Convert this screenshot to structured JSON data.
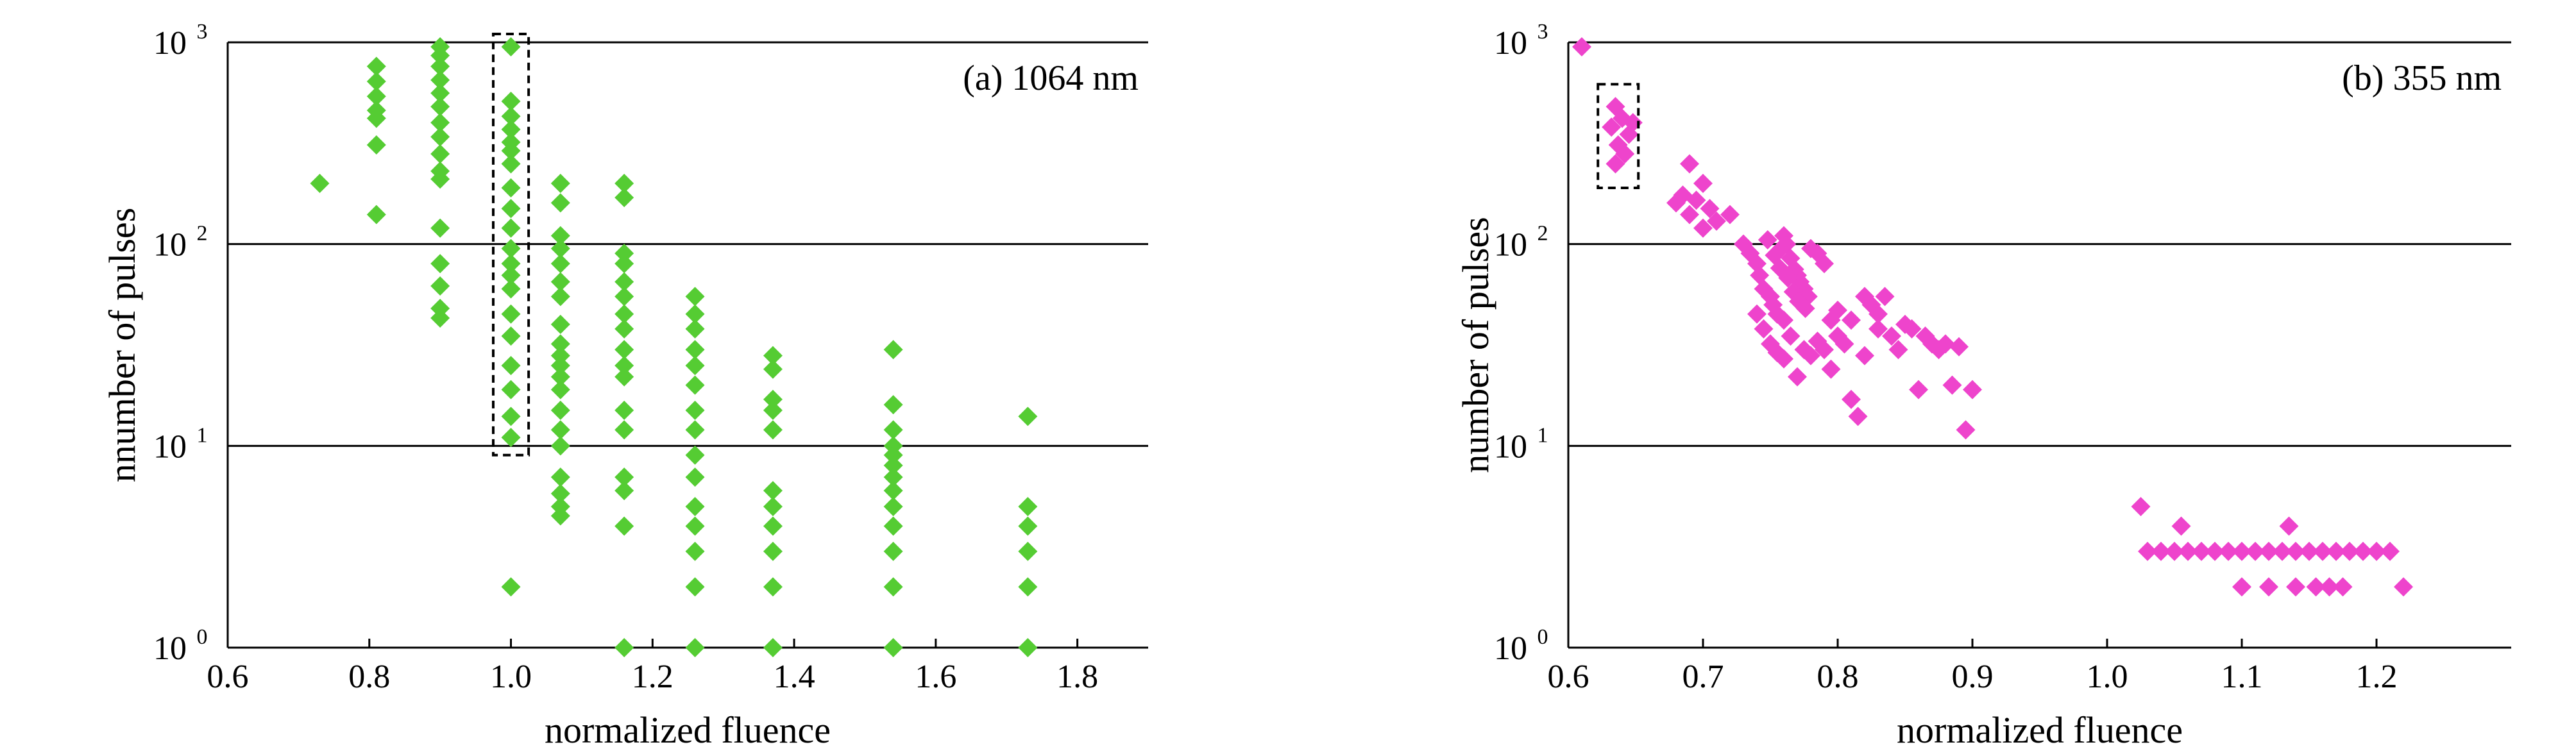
{
  "chart_data": [
    {
      "type": "scatter",
      "annotation": "(a) 1064 nm",
      "xlabel": "normalized fluence",
      "ylabel": "nnumber of pulses",
      "xlim": [
        0.6,
        1.9
      ],
      "ylim": [
        1,
        1000
      ],
      "yscale": "log",
      "xticks": [
        "0.6",
        "0.8",
        "1.0",
        "1.2",
        "1.4",
        "1.6",
        "1.8"
      ],
      "yticks": [
        {
          "base": "10",
          "exp": "0"
        },
        {
          "base": "10",
          "exp": "1"
        },
        {
          "base": "10",
          "exp": "2"
        },
        {
          "base": "10",
          "exp": "3"
        }
      ],
      "grid": "horizontal",
      "marker_color": "#55cc33",
      "highlight_box": {
        "x": [
          0.975,
          1.025
        ],
        "y": [
          9,
          1100
        ]
      },
      "points": [
        [
          0.73,
          200
        ],
        [
          0.81,
          760
        ],
        [
          0.81,
          640
        ],
        [
          0.81,
          540
        ],
        [
          0.81,
          460
        ],
        [
          0.81,
          420
        ],
        [
          0.81,
          310
        ],
        [
          0.81,
          140
        ],
        [
          0.9,
          950
        ],
        [
          0.9,
          860
        ],
        [
          0.9,
          760
        ],
        [
          0.9,
          650
        ],
        [
          0.9,
          560
        ],
        [
          0.9,
          480
        ],
        [
          0.9,
          400
        ],
        [
          0.9,
          340
        ],
        [
          0.9,
          280
        ],
        [
          0.9,
          230
        ],
        [
          0.9,
          210
        ],
        [
          0.9,
          120
        ],
        [
          0.9,
          80
        ],
        [
          0.9,
          62
        ],
        [
          0.9,
          48
        ],
        [
          0.9,
          43
        ],
        [
          1.0,
          950
        ],
        [
          1.0,
          510
        ],
        [
          1.0,
          430
        ],
        [
          1.0,
          370
        ],
        [
          1.0,
          320
        ],
        [
          1.0,
          290
        ],
        [
          1.0,
          250
        ],
        [
          1.0,
          190
        ],
        [
          1.0,
          150
        ],
        [
          1.0,
          120
        ],
        [
          1.0,
          95
        ],
        [
          1.0,
          80
        ],
        [
          1.0,
          70
        ],
        [
          1.0,
          60
        ],
        [
          1.0,
          45
        ],
        [
          1.0,
          35
        ],
        [
          1.0,
          25
        ],
        [
          1.0,
          19
        ],
        [
          1.0,
          14
        ],
        [
          1.0,
          11
        ],
        [
          1.0,
          2
        ],
        [
          1.07,
          200
        ],
        [
          1.07,
          160
        ],
        [
          1.07,
          110
        ],
        [
          1.07,
          95
        ],
        [
          1.07,
          80
        ],
        [
          1.07,
          65
        ],
        [
          1.07,
          55
        ],
        [
          1.07,
          40
        ],
        [
          1.07,
          32
        ],
        [
          1.07,
          28
        ],
        [
          1.07,
          25
        ],
        [
          1.07,
          22
        ],
        [
          1.07,
          19
        ],
        [
          1.07,
          15
        ],
        [
          1.07,
          12
        ],
        [
          1.07,
          10
        ],
        [
          1.07,
          7
        ],
        [
          1.07,
          5.8
        ],
        [
          1.07,
          5
        ],
        [
          1.07,
          4.5
        ],
        [
          1.16,
          200
        ],
        [
          1.16,
          170
        ],
        [
          1.16,
          90
        ],
        [
          1.16,
          80
        ],
        [
          1.16,
          65
        ],
        [
          1.16,
          55
        ],
        [
          1.16,
          45
        ],
        [
          1.16,
          38
        ],
        [
          1.16,
          30
        ],
        [
          1.16,
          25
        ],
        [
          1.16,
          22
        ],
        [
          1.16,
          15
        ],
        [
          1.16,
          12
        ],
        [
          1.16,
          7
        ],
        [
          1.16,
          6
        ],
        [
          1.16,
          4
        ],
        [
          1.16,
          1
        ],
        [
          1.26,
          55
        ],
        [
          1.26,
          45
        ],
        [
          1.26,
          38
        ],
        [
          1.26,
          30
        ],
        [
          1.26,
          25
        ],
        [
          1.26,
          20
        ],
        [
          1.26,
          15
        ],
        [
          1.26,
          12
        ],
        [
          1.26,
          9
        ],
        [
          1.26,
          7
        ],
        [
          1.26,
          5
        ],
        [
          1.26,
          4
        ],
        [
          1.26,
          3
        ],
        [
          1.26,
          2
        ],
        [
          1.26,
          1
        ],
        [
          1.37,
          28
        ],
        [
          1.37,
          24
        ],
        [
          1.37,
          17
        ],
        [
          1.37,
          15
        ],
        [
          1.37,
          12
        ],
        [
          1.37,
          6
        ],
        [
          1.37,
          5
        ],
        [
          1.37,
          4
        ],
        [
          1.37,
          3
        ],
        [
          1.37,
          2
        ],
        [
          1.37,
          1
        ],
        [
          1.54,
          30
        ],
        [
          1.54,
          16
        ],
        [
          1.54,
          12
        ],
        [
          1.54,
          10
        ],
        [
          1.54,
          9
        ],
        [
          1.54,
          8
        ],
        [
          1.54,
          7
        ],
        [
          1.54,
          6
        ],
        [
          1.54,
          5
        ],
        [
          1.54,
          4
        ],
        [
          1.54,
          3
        ],
        [
          1.54,
          2
        ],
        [
          1.54,
          1
        ],
        [
          1.73,
          14
        ],
        [
          1.73,
          5
        ],
        [
          1.73,
          4
        ],
        [
          1.73,
          3
        ],
        [
          1.73,
          2
        ],
        [
          1.73,
          1
        ]
      ]
    },
    {
      "type": "scatter",
      "annotation": "(b) 355 nm",
      "xlabel": "normalized fluence",
      "ylabel": "number of pulses",
      "xlim": [
        0.6,
        1.3
      ],
      "ylim": [
        1,
        1000
      ],
      "yscale": "log",
      "xticks": [
        "0.6",
        "0.7",
        "0.8",
        "0.9",
        "1.0",
        "1.1",
        "1.2"
      ],
      "yticks": [
        {
          "base": "10",
          "exp": "0"
        },
        {
          "base": "10",
          "exp": "1"
        },
        {
          "base": "10",
          "exp": "2"
        },
        {
          "base": "10",
          "exp": "3"
        }
      ],
      "grid": "horizontal",
      "marker_color": "#ee44cc",
      "highlight_box": {
        "x": [
          0.622,
          0.652
        ],
        "y": [
          190,
          620
        ]
      },
      "points": [
        [
          0.61,
          950
        ],
        [
          0.635,
          480
        ],
        [
          0.64,
          420
        ],
        [
          0.632,
          380
        ],
        [
          0.645,
          350
        ],
        [
          0.637,
          310
        ],
        [
          0.642,
          280
        ],
        [
          0.635,
          250
        ],
        [
          0.648,
          400
        ],
        [
          0.69,
          250
        ],
        [
          0.7,
          200
        ],
        [
          0.68,
          160
        ],
        [
          0.69,
          140
        ],
        [
          0.7,
          120
        ],
        [
          0.705,
          150
        ],
        [
          0.71,
          130
        ],
        [
          0.685,
          175
        ],
        [
          0.695,
          165
        ],
        [
          0.72,
          140
        ],
        [
          0.73,
          100
        ],
        [
          0.735,
          90
        ],
        [
          0.74,
          80
        ],
        [
          0.742,
          70
        ],
        [
          0.745,
          60
        ],
        [
          0.75,
          55
        ],
        [
          0.752,
          50
        ],
        [
          0.755,
          45
        ],
        [
          0.76,
          42
        ],
        [
          0.758,
          95
        ],
        [
          0.76,
          110
        ],
        [
          0.762,
          100
        ],
        [
          0.765,
          85
        ],
        [
          0.768,
          75
        ],
        [
          0.77,
          70
        ],
        [
          0.772,
          65
        ],
        [
          0.775,
          60
        ],
        [
          0.778,
          55
        ],
        [
          0.78,
          95
        ],
        [
          0.785,
          90
        ],
        [
          0.79,
          80
        ],
        [
          0.748,
          105
        ],
        [
          0.753,
          88
        ],
        [
          0.757,
          76
        ],
        [
          0.763,
          68
        ],
        [
          0.767,
          58
        ],
        [
          0.771,
          52
        ],
        [
          0.776,
          48
        ],
        [
          0.74,
          45
        ],
        [
          0.745,
          38
        ],
        [
          0.75,
          32
        ],
        [
          0.755,
          29
        ],
        [
          0.76,
          27
        ],
        [
          0.765,
          35
        ],
        [
          0.77,
          22
        ],
        [
          0.775,
          30
        ],
        [
          0.78,
          28
        ],
        [
          0.785,
          33
        ],
        [
          0.79,
          30
        ],
        [
          0.795,
          24
        ],
        [
          0.8,
          35
        ],
        [
          0.805,
          32
        ],
        [
          0.81,
          17
        ],
        [
          0.815,
          14
        ],
        [
          0.82,
          55
        ],
        [
          0.825,
          50
        ],
        [
          0.83,
          45
        ],
        [
          0.835,
          55
        ],
        [
          0.84,
          35
        ],
        [
          0.845,
          30
        ],
        [
          0.85,
          40
        ],
        [
          0.855,
          38
        ],
        [
          0.86,
          19
        ],
        [
          0.865,
          35
        ],
        [
          0.87,
          32
        ],
        [
          0.875,
          30
        ],
        [
          0.88,
          32
        ],
        [
          0.885,
          20
        ],
        [
          0.89,
          31
        ],
        [
          0.895,
          12
        ],
        [
          0.9,
          19
        ],
        [
          0.81,
          42
        ],
        [
          0.83,
          38
        ],
        [
          0.82,
          28
        ],
        [
          0.8,
          47
        ],
        [
          0.795,
          42
        ],
        [
          1.025,
          5
        ],
        [
          1.055,
          4
        ],
        [
          1.135,
          4
        ],
        [
          1.03,
          3
        ],
        [
          1.04,
          3
        ],
        [
          1.05,
          3
        ],
        [
          1.06,
          3
        ],
        [
          1.07,
          3
        ],
        [
          1.08,
          3
        ],
        [
          1.09,
          3
        ],
        [
          1.1,
          3
        ],
        [
          1.11,
          3
        ],
        [
          1.12,
          3
        ],
        [
          1.13,
          3
        ],
        [
          1.14,
          3
        ],
        [
          1.15,
          3
        ],
        [
          1.16,
          3
        ],
        [
          1.17,
          3
        ],
        [
          1.18,
          3
        ],
        [
          1.19,
          3
        ],
        [
          1.2,
          3
        ],
        [
          1.21,
          3
        ],
        [
          1.1,
          2
        ],
        [
          1.12,
          2
        ],
        [
          1.14,
          2
        ],
        [
          1.155,
          2
        ],
        [
          1.165,
          2
        ],
        [
          1.175,
          2
        ],
        [
          1.22,
          2
        ]
      ]
    }
  ]
}
